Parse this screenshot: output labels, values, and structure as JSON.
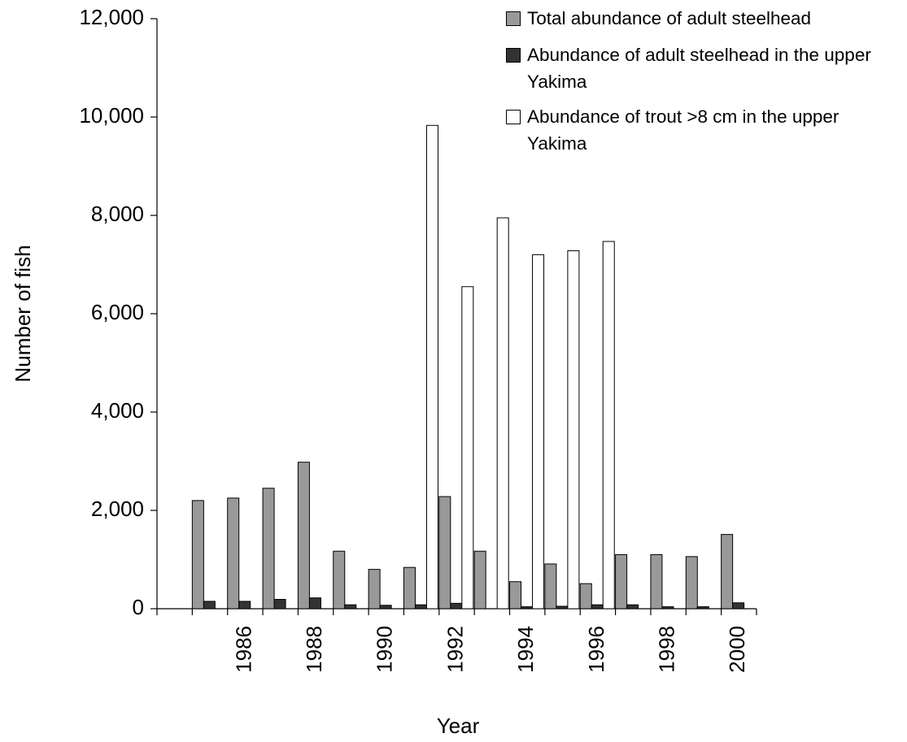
{
  "chart_data": {
    "type": "bar",
    "x_label": "Year",
    "y_label": "Number of fish",
    "categories": [
      null,
      null,
      "1986",
      null,
      "1988",
      null,
      "1990",
      null,
      "1992",
      null,
      "1994",
      null,
      "1996",
      null,
      "1998",
      null,
      "2000"
    ],
    "series": [
      {
        "name": "Total abundance of adult steelhead",
        "color": "#999999",
        "values": [
          null,
          2200,
          2250,
          2450,
          2980,
          1170,
          800,
          840,
          2280,
          1170,
          550,
          910,
          510,
          1100,
          1100,
          1060,
          1510
        ]
      },
      {
        "name": "Abundance of adult steelhead in the upper Yakima",
        "color": "#333333",
        "values": [
          null,
          150,
          150,
          190,
          220,
          80,
          70,
          80,
          110,
          null,
          40,
          50,
          80,
          80,
          40,
          40,
          120
        ]
      },
      {
        "name": "Abundance of trout >8 cm in the upper Yakima",
        "color": "#ffffff",
        "values": [
          null,
          null,
          null,
          null,
          null,
          null,
          null,
          9830,
          6550,
          7950,
          7200,
          7280,
          7470,
          null,
          null,
          null,
          null
        ]
      }
    ],
    "ylim": [
      0,
      12000
    ],
    "yticks": [
      0,
      {
        "value": 2000,
        "label": "2,000"
      },
      {
        "value": 4000,
        "label": "4,000"
      },
      {
        "value": 6000,
        "label": "6,000"
      },
      {
        "value": 8000,
        "label": "8,000"
      },
      {
        "value": 10000,
        "label": "10,000"
      },
      {
        "value": 12000,
        "label": "12,000"
      }
    ],
    "grid": false,
    "legend": "top-right"
  }
}
